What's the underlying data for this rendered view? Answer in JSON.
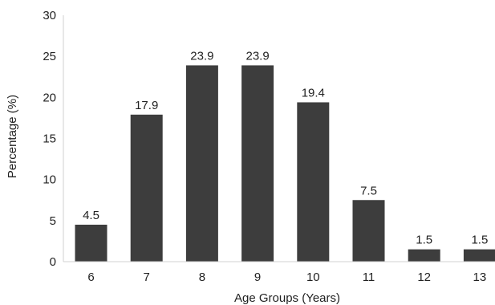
{
  "chart_data": {
    "type": "bar",
    "title": "",
    "xlabel": "Age Groups (Years)",
    "ylabel": "Percentage (%)",
    "categories": [
      "6",
      "7",
      "8",
      "9",
      "10",
      "11",
      "12",
      "13"
    ],
    "values": [
      4.5,
      17.9,
      23.9,
      23.9,
      19.4,
      7.5,
      1.5,
      1.5
    ],
    "data_labels": [
      "4.5",
      "17.9",
      "23.9",
      "23.9",
      "19.4",
      "7.5",
      "1.5",
      "1.5"
    ],
    "ylim": [
      0,
      30
    ],
    "yticks": [
      "0",
      "5",
      "10",
      "15",
      "20",
      "25",
      "30"
    ],
    "grid": false,
    "legend": "none",
    "bar_color": "#3d3d3d",
    "axis_color": "#d0d0d0"
  }
}
